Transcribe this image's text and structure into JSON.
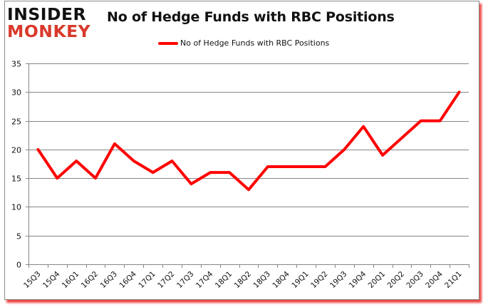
{
  "header": {
    "logo_top": "INSIDER",
    "logo_bottom": "MONKEY",
    "title": "No of Hedge Funds with RBC Positions"
  },
  "legend": {
    "label": "No of Hedge Funds with RBC Positions",
    "color": "#ff0000"
  },
  "colors": {
    "series": "#ff0000",
    "grid": "#868686",
    "logo_black": "#111111",
    "logo_red": "#d9392b",
    "frame_shadow": "#e60000"
  },
  "chart_data": {
    "type": "line",
    "title": "No of Hedge Funds with RBC Positions",
    "xlabel": "",
    "ylabel": "",
    "ylim": [
      0,
      35
    ],
    "yticks": [
      0,
      5,
      10,
      15,
      20,
      25,
      30,
      35
    ],
    "grid": true,
    "legend_position": "top",
    "categories": [
      "15Q3",
      "15Q4",
      "16Q1",
      "16Q2",
      "16Q3",
      "16Q4",
      "17Q1",
      "17Q2",
      "17Q3",
      "17Q4",
      "18Q1",
      "18Q2",
      "18Q3",
      "18Q4",
      "19Q1",
      "19Q2",
      "19Q3",
      "19Q4",
      "20Q1",
      "20Q2",
      "20Q3",
      "20Q4",
      "21Q1"
    ],
    "series": [
      {
        "name": "No of Hedge Funds with RBC Positions",
        "color": "#ff0000",
        "values": [
          20,
          15,
          18,
          15,
          21,
          18,
          16,
          18,
          14,
          16,
          16,
          13,
          17,
          17,
          17,
          17,
          20,
          24,
          19,
          22,
          25,
          25,
          30
        ]
      }
    ]
  }
}
